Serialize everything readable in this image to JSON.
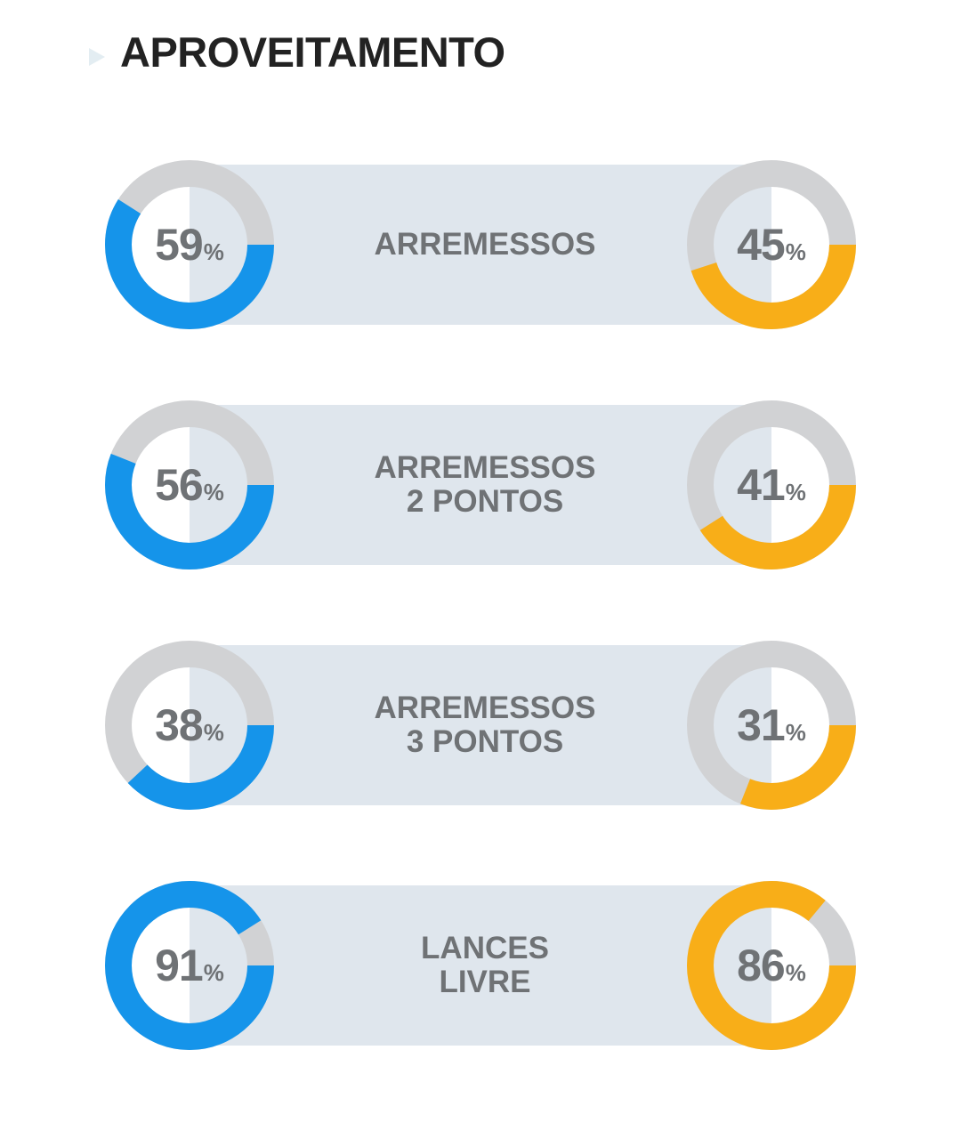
{
  "title": "APROVEITAMENTO",
  "colors": {
    "team_a": "#1594ea",
    "team_b": "#f8ae18",
    "track": "#d1d2d4",
    "band": "#dfe6ed",
    "text": "#6f7275"
  },
  "percent_symbol": "%",
  "chart_data": [
    {
      "type": "pie",
      "category": "ARREMESSOS",
      "label_lines": [
        "ARREMESSOS"
      ],
      "team_a_pct": 59,
      "team_b_pct": 45
    },
    {
      "type": "pie",
      "category": "ARREMESSOS 2 PONTOS",
      "label_lines": [
        "ARREMESSOS",
        "2 PONTOS"
      ],
      "team_a_pct": 56,
      "team_b_pct": 41
    },
    {
      "type": "pie",
      "category": "ARREMESSOS 3 PONTOS",
      "label_lines": [
        "ARREMESSOS",
        "3 PONTOS"
      ],
      "team_a_pct": 38,
      "team_b_pct": 31
    },
    {
      "type": "pie",
      "category": "LANCES LIVRE",
      "label_lines": [
        "LANCES",
        "LIVRE"
      ],
      "team_a_pct": 91,
      "team_b_pct": 86
    }
  ]
}
